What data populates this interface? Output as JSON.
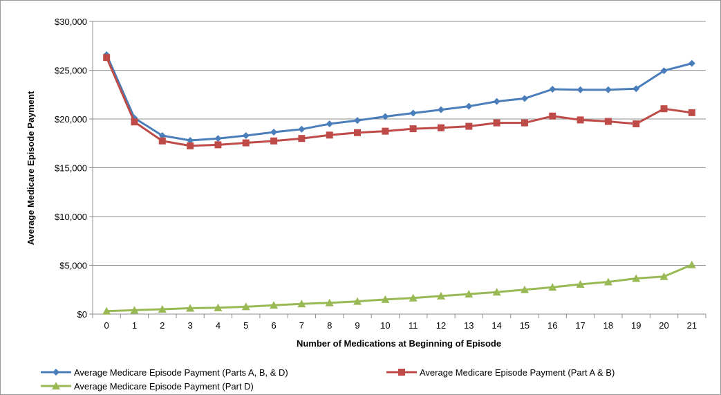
{
  "chart_data": {
    "type": "line",
    "title": "",
    "xlabel": "Number of Medications at Beginning of Episode",
    "ylabel": "Average Medicare  Episode  Payment",
    "categories": [
      "0",
      "1",
      "2",
      "3",
      "4",
      "5",
      "6",
      "7",
      "8",
      "9",
      "10",
      "11",
      "12",
      "13",
      "14",
      "15",
      "16",
      "17",
      "18",
      "19",
      "20",
      "21"
    ],
    "ylim": [
      0,
      30000
    ],
    "yticks": [
      0,
      5000,
      10000,
      15000,
      20000,
      25000,
      30000
    ],
    "ytick_labels": [
      "$0",
      "$5,000",
      "$10,000",
      "$15,000",
      "$20,000",
      "$25,000",
      "$30,000"
    ],
    "grid": "horizontal",
    "legend_position": "bottom",
    "series": [
      {
        "name": "Average Medicare Episode Payment (Parts A, B, & D)",
        "color": "#4a7ebb",
        "marker": "diamond",
        "values": [
          26600,
          20100,
          18300,
          17800,
          18000,
          18300,
          18650,
          18950,
          19500,
          19850,
          20250,
          20600,
          20950,
          21300,
          21800,
          22100,
          23050,
          23000,
          23000,
          23100,
          24950,
          25700
        ]
      },
      {
        "name": "Average Medicare Episode Payment (Part A & B)",
        "color": "#be4b48",
        "marker": "square",
        "values": [
          26300,
          19700,
          17750,
          17250,
          17350,
          17550,
          17750,
          18000,
          18350,
          18600,
          18750,
          19000,
          19100,
          19250,
          19600,
          19600,
          20300,
          19900,
          19750,
          19500,
          21050,
          20650
        ]
      },
      {
        "name": "Average Medicare Episode Payment (Part D)",
        "color": "#98b954",
        "marker": "triangle",
        "values": [
          300,
          400,
          500,
          600,
          650,
          750,
          900,
          1050,
          1150,
          1300,
          1500,
          1650,
          1850,
          2050,
          2250,
          2500,
          2750,
          3050,
          3300,
          3650,
          3850,
          5050
        ]
      }
    ]
  }
}
